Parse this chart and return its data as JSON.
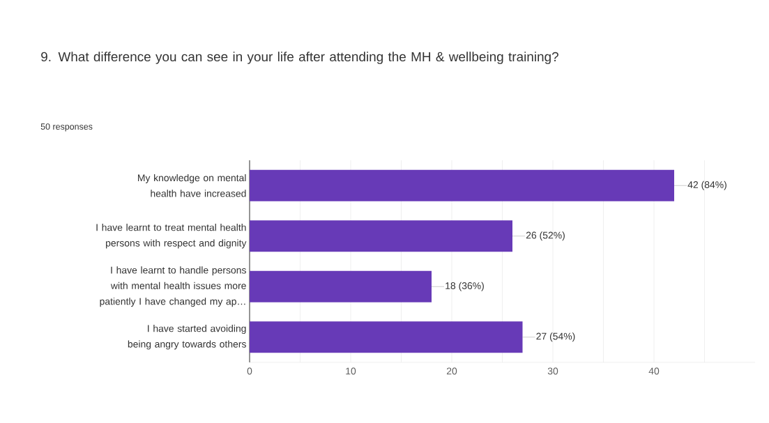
{
  "chart_data": {
    "type": "bar",
    "orientation": "horizontal",
    "title": "9.    What difference you can see in your life after attending the MH & wellbeing training?",
    "subtitle": "50 responses",
    "categories": [
      "My knowledge on mental health have increased",
      "I have learnt to treat mental health persons with respect and dignity",
      "I have learnt to handle persons with mental health issues more patiently I have changed my ap…",
      "I have started avoiding being angry towards others"
    ],
    "values": [
      42,
      26,
      18,
      27
    ],
    "value_labels": [
      "42 (84%)",
      "26 (52%)",
      "18 (36%)",
      "27 (54%)"
    ],
    "color": "#673ab7",
    "xlim": [
      0,
      50
    ],
    "xticks": [
      0,
      {
        "value": 5,
        "label": null
      },
      10,
      {
        "value": 15,
        "label": null
      },
      20,
      {
        "value": 25,
        "label": null
      },
      30,
      {
        "value": 35,
        "label": null
      },
      40,
      {
        "value": 45,
        "label": null
      }
    ],
    "grid": "x"
  }
}
